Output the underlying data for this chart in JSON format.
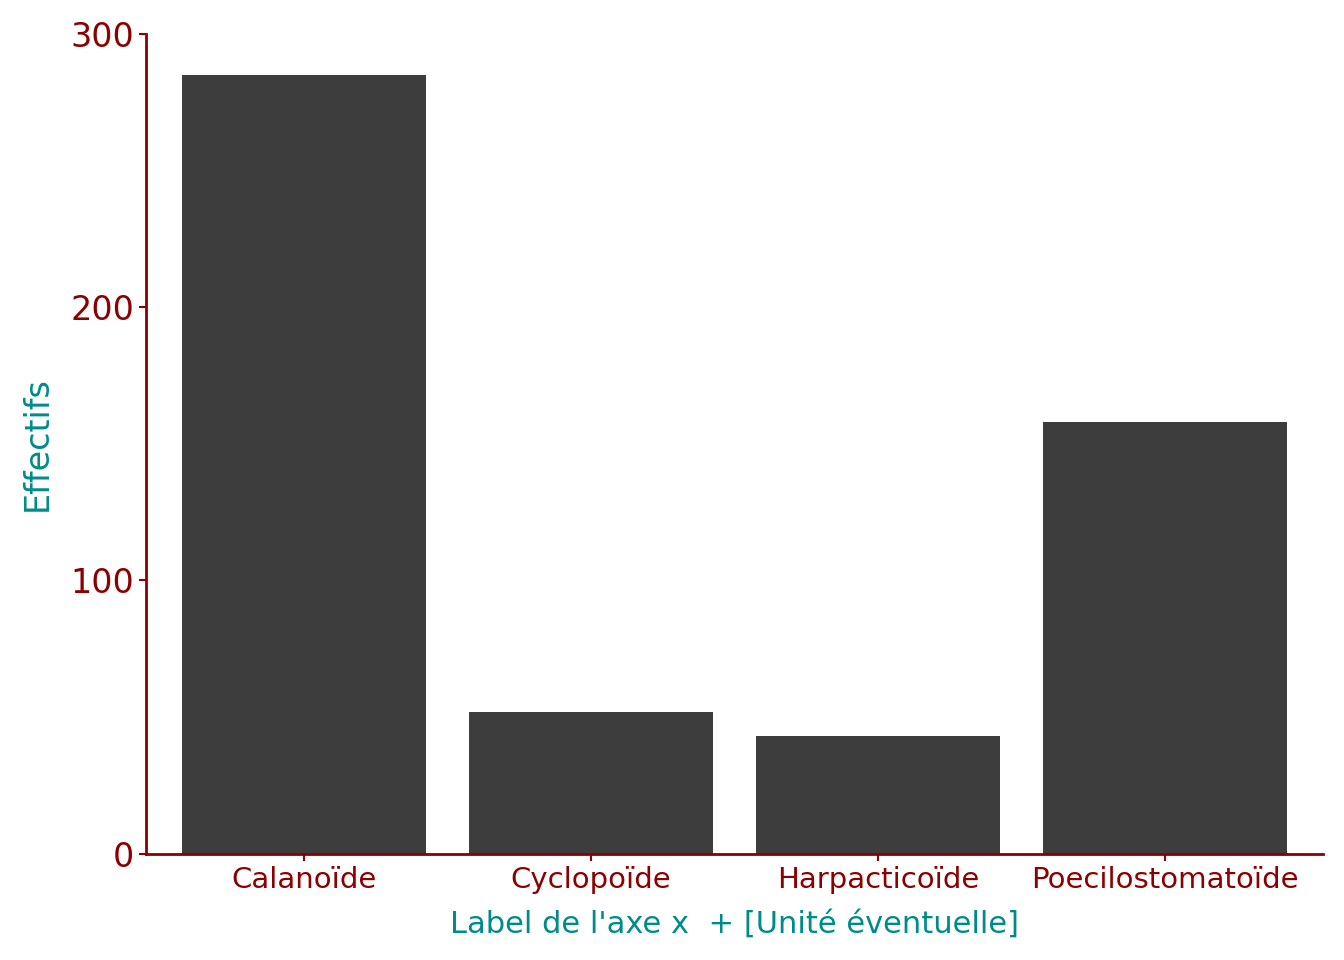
{
  "categories": [
    "Calanoïde",
    "Cyclopoïde",
    "Harpacticoïde",
    "Poecilostomatoïde"
  ],
  "values": [
    285,
    52,
    43,
    158
  ],
  "bar_color": "#3d3d3d",
  "ylabel": "Effectifs",
  "xlabel": "Label de l'axe x  + [Unité éventuelle]",
  "ylabel_color": "#008b8b",
  "xlabel_color": "#008b8b",
  "xticklabel_color": "#8b0000",
  "ytick_label_color": "#8b0000",
  "yticks": [
    0,
    100,
    200,
    300
  ],
  "ylim": [
    0,
    300
  ],
  "background_color": "#ffffff",
  "bar_width": 0.85,
  "ylabel_fontsize": 24,
  "xlabel_fontsize": 22,
  "ytick_fontsize": 24,
  "xtick_fontsize": 21,
  "spine_color": "#8b0000",
  "spine_linewidth": 2.0
}
